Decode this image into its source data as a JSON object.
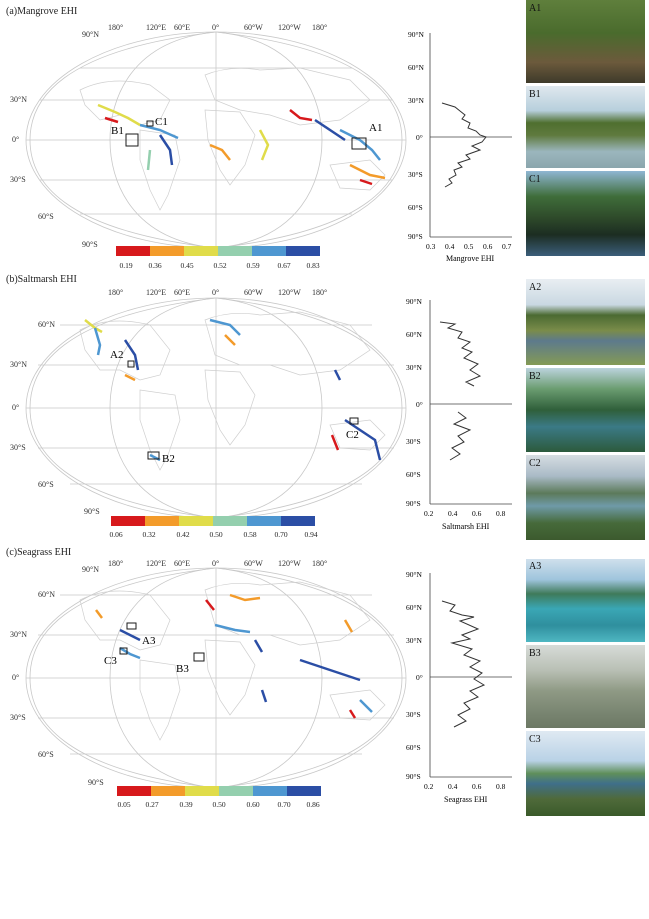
{
  "colors": {
    "scale": [
      "#d7191c",
      "#f39b2a",
      "#e0dc4a",
      "#94cfae",
      "#4e97d1",
      "#2b4ea5"
    ],
    "grid": "#c8c8c8",
    "land": "#d0d0d0"
  },
  "panels": [
    {
      "title": "(a)Mangrove EHI",
      "lat_labels": [
        "90°N",
        "30°N",
        "0°",
        "30°S",
        "60°S",
        "90°S"
      ],
      "lon_labels": [
        "180°",
        "120°E",
        "60°E",
        "0°",
        "60°W",
        "120°W",
        "180°"
      ],
      "boxes": [
        "A1",
        "B1",
        "C1"
      ],
      "colorbar_ticks": [
        "0.19",
        "0.36",
        "0.45",
        "0.52",
        "0.59",
        "0.67",
        "0.83"
      ],
      "profile": {
        "xlabel": "Mangrove EHI",
        "xticks": [
          "0.3",
          "0.4",
          "0.5",
          "0.6",
          "0.7"
        ],
        "yticks": [
          "90°N",
          "60°N",
          "30°N",
          "0°",
          "30°S",
          "60°S",
          "90°S"
        ]
      },
      "photos": [
        "A1",
        "B1",
        "C1"
      ]
    },
    {
      "title": "(b)Saltmarsh EHI",
      "lat_labels": [
        "60°N",
        "30°N",
        "0°",
        "30°S",
        "60°S",
        "90°S"
      ],
      "lon_labels": [
        "180°",
        "120°E",
        "60°E",
        "0°",
        "60°W",
        "120°W",
        "180°"
      ],
      "boxes": [
        "A2",
        "B2",
        "C2"
      ],
      "colorbar_ticks": [
        "0.06",
        "0.32",
        "0.42",
        "0.50",
        "0.58",
        "0.70",
        "0.94"
      ],
      "profile": {
        "xlabel": "Saltmarsh EHI",
        "xticks": [
          "0.2",
          "0.4",
          "0.6",
          "0.8"
        ],
        "yticks": [
          "90°N",
          "60°N",
          "30°N",
          "0°",
          "30°S",
          "60°S",
          "90°S"
        ]
      },
      "photos": [
        "A2",
        "B2",
        "C2"
      ]
    },
    {
      "title": "(c)Seagrass EHI",
      "lat_labels": [
        "90°N",
        "60°N",
        "30°N",
        "0°",
        "30°S",
        "60°S",
        "90°S"
      ],
      "lon_labels": [
        "180°",
        "120°E",
        "60°E",
        "0°",
        "60°W",
        "120°W",
        "180°"
      ],
      "boxes": [
        "A3",
        "B3",
        "C3"
      ],
      "colorbar_ticks": [
        "0.05",
        "0.27",
        "0.39",
        "0.50",
        "0.60",
        "0.70",
        "0.86"
      ],
      "profile": {
        "xlabel": "Seagrass EHI",
        "xticks": [
          "0.2",
          "0.4",
          "0.6",
          "0.8"
        ],
        "yticks": [
          "90°N",
          "60°N",
          "30°N",
          "0°",
          "30°S",
          "60°S",
          "90°S"
        ]
      },
      "photos": [
        "A3",
        "B3",
        "C3"
      ]
    }
  ]
}
